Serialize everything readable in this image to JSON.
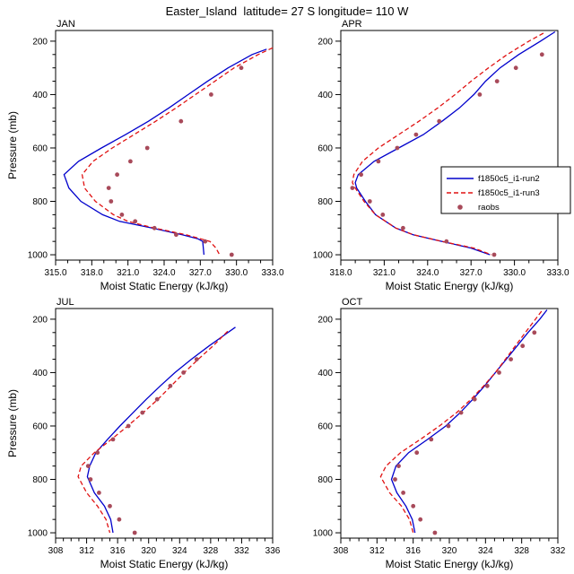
{
  "title": "Easter_Island  latitude= 27 S longitude= 110 W",
  "colors": {
    "run2": "#0000cc",
    "run3": "#e01212",
    "raobs": "#a84a5a"
  },
  "legend": {
    "position": "right-middle-of-APR-panel",
    "items": [
      {
        "label": "f1850c5_i1-run2",
        "style": "solid",
        "color_key": "run2"
      },
      {
        "label": "f1850c5_i1-run3",
        "style": "dashed",
        "color_key": "run3"
      },
      {
        "label": "raobs",
        "style": "dots",
        "color_key": "raobs"
      }
    ]
  },
  "chart_data": [
    {
      "type": "line",
      "title": "JAN",
      "xlabel": "Moist Static Energy (kJ/kg)",
      "ylabel": "Pressure (mb)",
      "xlim": [
        315,
        333
      ],
      "xticks": [
        315,
        318,
        321,
        324,
        327,
        330,
        333
      ],
      "xtick_labels": [
        "315.0",
        "318.0",
        "321.0",
        "324.0",
        "327.0",
        "330.0",
        "333.0"
      ],
      "xminor_step": 1,
      "ylim": [
        160,
        1020
      ],
      "yticks": [
        200,
        400,
        600,
        800,
        1000
      ],
      "yminor_step": 50,
      "has_legend": false,
      "series": [
        {
          "name": "f1850c5_i1-run2",
          "style": "solid",
          "color_key": "run2",
          "points": [
            [
              230,
              332.5
            ],
            [
              250,
              331.3
            ],
            [
              300,
              329.3
            ],
            [
              350,
              327.6
            ],
            [
              400,
              326.0
            ],
            [
              450,
              324.4
            ],
            [
              500,
              322.7
            ],
            [
              550,
              320.8
            ],
            [
              600,
              318.8
            ],
            [
              650,
              316.9
            ],
            [
              700,
              315.7
            ],
            [
              750,
              316.1
            ],
            [
              800,
              317.1
            ],
            [
              850,
              318.9
            ],
            [
              875,
              320.3
            ],
            [
              900,
              323.0
            ],
            [
              925,
              325.5
            ],
            [
              940,
              326.8
            ],
            [
              950,
              327.2
            ],
            [
              1000,
              327.3
            ]
          ]
        },
        {
          "name": "f1850c5_i1-run3",
          "style": "dashed",
          "color_key": "run3",
          "points": [
            [
              225,
              333.0
            ],
            [
              250,
              331.8
            ],
            [
              300,
              329.8
            ],
            [
              350,
              328.2
            ],
            [
              400,
              326.6
            ],
            [
              450,
              325.0
            ],
            [
              500,
              323.3
            ],
            [
              550,
              321.5
            ],
            [
              600,
              319.7
            ],
            [
              650,
              318.1
            ],
            [
              700,
              317.2
            ],
            [
              750,
              317.4
            ],
            [
              800,
              318.3
            ],
            [
              850,
              319.8
            ],
            [
              875,
              321.0
            ],
            [
              900,
              323.2
            ],
            [
              925,
              325.8
            ],
            [
              950,
              327.8
            ],
            [
              975,
              328.3
            ],
            [
              1000,
              328.6
            ]
          ]
        },
        {
          "name": "raobs",
          "style": "dots",
          "color_key": "raobs",
          "points": [
            [
              300,
              330.4
            ],
            [
              400,
              327.9
            ],
            [
              500,
              325.4
            ],
            [
              600,
              322.6
            ],
            [
              650,
              321.2
            ],
            [
              700,
              320.1
            ],
            [
              750,
              319.4
            ],
            [
              800,
              319.6
            ],
            [
              850,
              320.5
            ],
            [
              875,
              321.6
            ],
            [
              900,
              323.2
            ],
            [
              925,
              325.0
            ],
            [
              950,
              327.4
            ],
            [
              1000,
              329.6
            ]
          ]
        }
      ]
    },
    {
      "type": "line",
      "title": "APR",
      "xlabel": "Moist Static Energy (kJ/kg)",
      "ylabel": "",
      "xlim": [
        318,
        333
      ],
      "xticks": [
        318,
        321,
        324,
        327,
        330,
        333
      ],
      "xtick_labels": [
        "318.0",
        "321.0",
        "324.0",
        "327.0",
        "330.0",
        "333.0"
      ],
      "xminor_step": 1,
      "ylim": [
        160,
        1020
      ],
      "yticks": [
        200,
        400,
        600,
        800,
        1000
      ],
      "yminor_step": 50,
      "has_legend": true,
      "series": [
        {
          "name": "f1850c5_i1-run2",
          "style": "solid",
          "color_key": "run2",
          "points": [
            [
              165,
              332.8
            ],
            [
              200,
              331.8
            ],
            [
              250,
              330.3
            ],
            [
              300,
              329.0
            ],
            [
              350,
              328.0
            ],
            [
              400,
              327.2
            ],
            [
              450,
              326.2
            ],
            [
              500,
              325.0
            ],
            [
              550,
              323.7
            ],
            [
              600,
              322.0
            ],
            [
              650,
              320.3
            ],
            [
              700,
              319.2
            ],
            [
              730,
              319.0
            ],
            [
              750,
              319.1
            ],
            [
              800,
              319.7
            ],
            [
              850,
              320.4
            ],
            [
              900,
              321.8
            ],
            [
              925,
              323.0
            ],
            [
              950,
              325.0
            ],
            [
              975,
              327.0
            ],
            [
              1000,
              328.3
            ]
          ]
        },
        {
          "name": "f1850c5_i1-run3",
          "style": "dashed",
          "color_key": "run3",
          "points": [
            [
              170,
              332.0
            ],
            [
              200,
              331.0
            ],
            [
              250,
              329.5
            ],
            [
              300,
              328.2
            ],
            [
              350,
              327.0
            ],
            [
              400,
              325.9
            ],
            [
              450,
              324.7
            ],
            [
              500,
              323.4
            ],
            [
              550,
              322.0
            ],
            [
              600,
              320.6
            ],
            [
              650,
              319.5
            ],
            [
              700,
              318.9
            ],
            [
              730,
              318.8
            ],
            [
              750,
              319.0
            ],
            [
              800,
              319.6
            ],
            [
              850,
              320.4
            ],
            [
              900,
              321.8
            ],
            [
              925,
              323.0
            ],
            [
              950,
              325.0
            ],
            [
              975,
              327.2
            ],
            [
              1000,
              328.4
            ]
          ]
        },
        {
          "name": "raobs",
          "style": "dots",
          "color_key": "raobs",
          "points": [
            [
              250,
              331.9
            ],
            [
              300,
              330.1
            ],
            [
              350,
              328.8
            ],
            [
              400,
              327.6
            ],
            [
              500,
              324.8
            ],
            [
              550,
              323.2
            ],
            [
              600,
              321.9
            ],
            [
              650,
              320.6
            ],
            [
              700,
              319.4
            ],
            [
              750,
              318.8
            ],
            [
              800,
              320.0
            ],
            [
              850,
              320.9
            ],
            [
              900,
              322.3
            ],
            [
              950,
              325.3
            ],
            [
              1000,
              328.6
            ]
          ]
        }
      ]
    },
    {
      "type": "line",
      "title": "JUL",
      "xlabel": "Moist Static Energy (kJ/kg)",
      "ylabel": "Pressure (mb)",
      "xlim": [
        308,
        336
      ],
      "xticks": [
        308,
        312,
        316,
        320,
        324,
        328,
        332,
        336
      ],
      "xtick_labels": [
        "308",
        "312",
        "316",
        "320",
        "324",
        "328",
        "332",
        "336"
      ],
      "xminor_step": 1,
      "ylim": [
        160,
        1020
      ],
      "yticks": [
        200,
        400,
        600,
        800,
        1000
      ],
      "yminor_step": 50,
      "has_legend": false,
      "series": [
        {
          "name": "f1850c5_i1-run2",
          "style": "solid",
          "color_key": "run2",
          "points": [
            [
              230,
              331.2
            ],
            [
              300,
              327.8
            ],
            [
              350,
              325.5
            ],
            [
              400,
              323.4
            ],
            [
              450,
              321.5
            ],
            [
              500,
              319.7
            ],
            [
              550,
              318.0
            ],
            [
              600,
              316.3
            ],
            [
              650,
              314.7
            ],
            [
              700,
              313.2
            ],
            [
              750,
              312.4
            ],
            [
              790,
              312.1
            ],
            [
              850,
              313.0
            ],
            [
              900,
              314.3
            ],
            [
              950,
              315.1
            ],
            [
              1000,
              315.4
            ]
          ]
        },
        {
          "name": "f1850c5_i1-run3",
          "style": "dashed",
          "color_key": "run3",
          "points": [
            [
              245,
              330.2
            ],
            [
              300,
              328.3
            ],
            [
              350,
              326.4
            ],
            [
              400,
              324.6
            ],
            [
              450,
              322.9
            ],
            [
              500,
              321.2
            ],
            [
              550,
              319.3
            ],
            [
              600,
              317.3
            ],
            [
              650,
              315.2
            ],
            [
              700,
              313.0
            ],
            [
              750,
              311.3
            ],
            [
              790,
              310.9
            ],
            [
              850,
              312.0
            ],
            [
              900,
              313.4
            ],
            [
              950,
              314.5
            ],
            [
              1000,
              315.0
            ]
          ]
        },
        {
          "name": "raobs",
          "style": "dots",
          "color_key": "raobs",
          "points": [
            [
              350,
              326.2
            ],
            [
              400,
              324.5
            ],
            [
              450,
              322.8
            ],
            [
              500,
              321.1
            ],
            [
              550,
              319.2
            ],
            [
              600,
              317.4
            ],
            [
              650,
              315.4
            ],
            [
              700,
              313.4
            ],
            [
              750,
              312.2
            ],
            [
              800,
              312.5
            ],
            [
              850,
              313.6
            ],
            [
              900,
              315.0
            ],
            [
              950,
              316.2
            ],
            [
              1000,
              318.2
            ]
          ]
        }
      ]
    },
    {
      "type": "line",
      "title": "OCT",
      "xlabel": "Moist Static Energy (kJ/kg)",
      "ylabel": "",
      "xlim": [
        308,
        332
      ],
      "xticks": [
        308,
        312,
        316,
        320,
        324,
        328,
        332
      ],
      "xtick_labels": [
        "308",
        "312",
        "316",
        "320",
        "324",
        "328",
        "332"
      ],
      "xminor_step": 1,
      "ylim": [
        160,
        1020
      ],
      "yticks": [
        200,
        400,
        600,
        800,
        1000
      ],
      "yminor_step": 50,
      "has_legend": false,
      "series": [
        {
          "name": "f1850c5_i1-run2",
          "style": "solid",
          "color_key": "run2",
          "points": [
            [
              165,
              330.8
            ],
            [
              200,
              330.0
            ],
            [
              250,
              328.7
            ],
            [
              300,
              327.5
            ],
            [
              350,
              326.3
            ],
            [
              400,
              325.1
            ],
            [
              450,
              323.9
            ],
            [
              500,
              322.6
            ],
            [
              550,
              321.2
            ],
            [
              600,
              319.6
            ],
            [
              650,
              317.6
            ],
            [
              700,
              315.5
            ],
            [
              750,
              314.1
            ],
            [
              800,
              313.6
            ],
            [
              850,
              314.2
            ],
            [
              900,
              315.2
            ],
            [
              950,
              315.9
            ],
            [
              1000,
              316.2
            ]
          ]
        },
        {
          "name": "f1850c5_i1-run3",
          "style": "dashed",
          "color_key": "run3",
          "points": [
            [
              170,
              330.2
            ],
            [
              250,
              328.4
            ],
            [
              300,
              327.3
            ],
            [
              350,
              326.2
            ],
            [
              400,
              325.1
            ],
            [
              450,
              323.8
            ],
            [
              500,
              322.4
            ],
            [
              550,
              320.8
            ],
            [
              600,
              318.9
            ],
            [
              650,
              316.8
            ],
            [
              700,
              314.6
            ],
            [
              750,
              313.0
            ],
            [
              790,
              312.4
            ],
            [
              850,
              313.4
            ],
            [
              900,
              314.7
            ],
            [
              950,
              315.6
            ],
            [
              1000,
              316.0
            ]
          ]
        },
        {
          "name": "raobs",
          "style": "dots",
          "color_key": "raobs",
          "points": [
            [
              250,
              329.4
            ],
            [
              300,
              328.1
            ],
            [
              350,
              326.8
            ],
            [
              400,
              325.5
            ],
            [
              450,
              324.2
            ],
            [
              500,
              322.8
            ],
            [
              550,
              321.3
            ],
            [
              600,
              319.9
            ],
            [
              650,
              318.0
            ],
            [
              700,
              316.4
            ],
            [
              750,
              314.4
            ],
            [
              800,
              314.0
            ],
            [
              850,
              314.9
            ],
            [
              900,
              316.0
            ],
            [
              950,
              316.8
            ],
            [
              1000,
              318.4
            ]
          ]
        }
      ]
    }
  ]
}
